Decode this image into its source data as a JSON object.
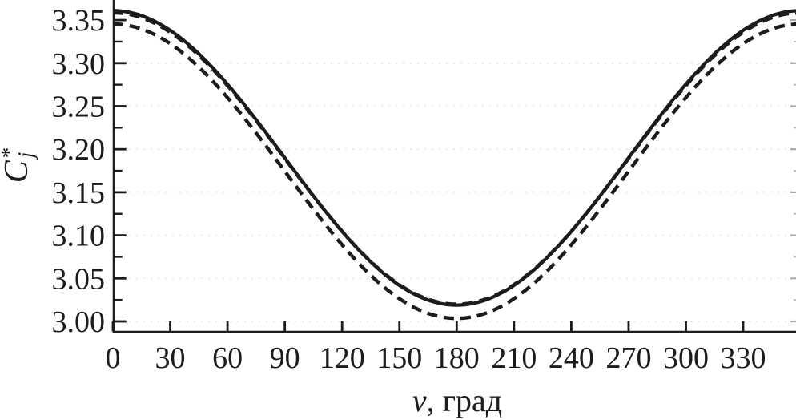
{
  "figure": {
    "background": "#ffffff",
    "ink_color": "#1c1c1c",
    "grid_color": "#e4e4e4"
  },
  "chart_data": {
    "type": "line",
    "title": "",
    "xlabel_symbol": "ν",
    "xlabel_rest": ", град",
    "ylabel_base": "C",
    "ylabel_sup": "*",
    "ylabel_sub": "j",
    "xlim": [
      0,
      360
    ],
    "ylim": [
      2.987,
      3.373
    ],
    "x_ticks": [
      "0",
      "30",
      "60",
      "90",
      "120",
      "150",
      "180",
      "210",
      "240",
      "270",
      "300",
      "330"
    ],
    "y_ticks": [
      "3.35",
      "3.30",
      "3.25",
      "3.20",
      "3.15",
      "3.10",
      "3.05",
      "3.00"
    ],
    "y_minor_ticks": [
      3.325,
      3.275,
      3.225,
      3.175,
      3.125,
      3.075,
      3.025
    ],
    "grid": "faint dotted horizontal lines at major y ticks",
    "legend": "none",
    "x_step_deg": 30,
    "series": [
      {
        "name": "solid-curve",
        "style": "solid",
        "mean": 3.19,
        "amplitude": 0.171,
        "x": [
          0,
          30,
          60,
          90,
          120,
          150,
          180,
          210,
          240,
          270,
          300,
          330,
          360
        ],
        "values": [
          3.361,
          3.338,
          3.276,
          3.19,
          3.105,
          3.042,
          3.019,
          3.042,
          3.105,
          3.19,
          3.276,
          3.338,
          3.361
        ]
      },
      {
        "name": "dashed-curve-coincident",
        "style": "dashed",
        "mean": 3.1893,
        "amplitude": 0.1693,
        "x": [
          0,
          30,
          60,
          90,
          120,
          150,
          180,
          210,
          240,
          270,
          300,
          330,
          360
        ],
        "values": [
          3.359,
          3.336,
          3.274,
          3.189,
          3.105,
          3.043,
          3.02,
          3.043,
          3.105,
          3.189,
          3.274,
          3.336,
          3.359
        ]
      },
      {
        "name": "dashed-curve-offset",
        "style": "dashed",
        "mean": 3.1745,
        "amplitude": 0.171,
        "x": [
          0,
          30,
          60,
          90,
          120,
          150,
          180,
          210,
          240,
          270,
          300,
          330,
          360
        ],
        "values": [
          3.346,
          3.323,
          3.26,
          3.175,
          3.089,
          3.026,
          3.004,
          3.026,
          3.089,
          3.175,
          3.26,
          3.323,
          3.346
        ]
      }
    ]
  }
}
